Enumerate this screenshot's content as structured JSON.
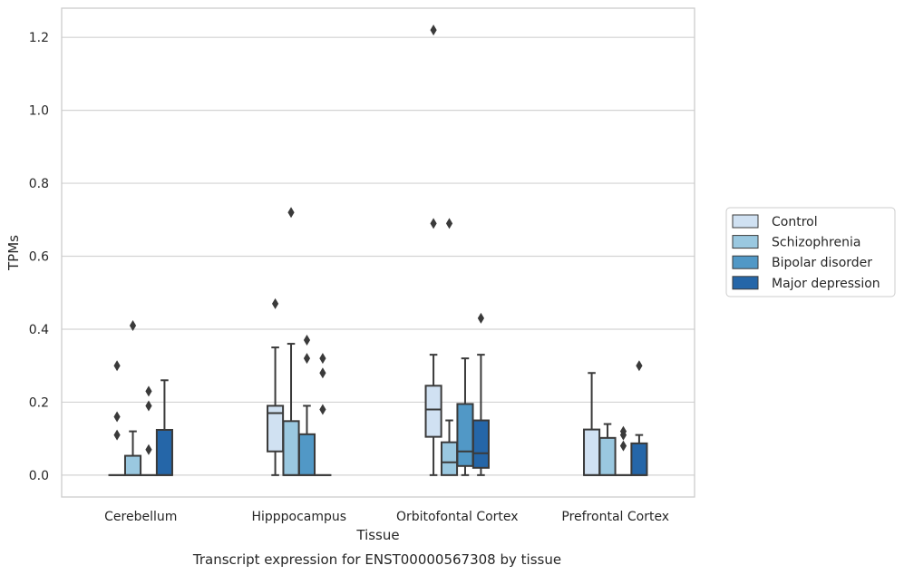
{
  "caption": "Transcript expression for ENST00000567308 by tissue",
  "chart_data": {
    "type": "boxplot",
    "title": "",
    "xlabel": "Tissue",
    "ylabel": "TPMs",
    "ylim": [
      -0.06,
      1.28
    ],
    "yticks": [
      0.0,
      0.2,
      0.4,
      0.6,
      0.8,
      1.0,
      1.2
    ],
    "ytick_labels": [
      "0.0",
      "0.2",
      "0.4",
      "0.6",
      "0.8",
      "1.0",
      "1.2"
    ],
    "grid": "horizontal",
    "legend_position": "right",
    "categories": [
      "Cerebellum",
      "Hipppocampus",
      "Orbitofontal Cortex",
      "Prefrontal Cortex"
    ],
    "series": [
      {
        "name": "Control",
        "color": "#d0e1f2",
        "boxes": [
          {
            "q1": 0.0,
            "median": 0.0,
            "q3": 0.0,
            "whisker_low": 0.0,
            "whisker_high": 0.0,
            "outliers": [
              0.3,
              0.16,
              0.11
            ]
          },
          {
            "q1": 0.065,
            "median": 0.17,
            "q3": 0.19,
            "whisker_low": 0.0,
            "whisker_high": 0.35,
            "outliers": [
              0.47
            ]
          },
          {
            "q1": 0.105,
            "median": 0.18,
            "q3": 0.245,
            "whisker_low": 0.0,
            "whisker_high": 0.33,
            "outliers": [
              1.22,
              0.69
            ]
          },
          {
            "q1": 0.0,
            "median": 0.0,
            "q3": 0.125,
            "whisker_low": 0.0,
            "whisker_high": 0.28,
            "outliers": []
          }
        ]
      },
      {
        "name": "Schizophrenia",
        "color": "#9ac8e0",
        "boxes": [
          {
            "q1": 0.0,
            "median": 0.0,
            "q3": 0.053,
            "whisker_low": 0.0,
            "whisker_high": 0.12,
            "outliers": [
              0.41
            ]
          },
          {
            "q1": 0.0,
            "median": 0.0,
            "q3": 0.148,
            "whisker_low": 0.0,
            "whisker_high": 0.36,
            "outliers": [
              0.72
            ]
          },
          {
            "q1": 0.0,
            "median": 0.035,
            "q3": 0.09,
            "whisker_low": 0.0,
            "whisker_high": 0.15,
            "outliers": [
              0.69
            ]
          },
          {
            "q1": 0.0,
            "median": 0.0,
            "q3": 0.102,
            "whisker_low": 0.0,
            "whisker_high": 0.14,
            "outliers": []
          }
        ]
      },
      {
        "name": "Bipolar disorder",
        "color": "#5198c6",
        "boxes": [
          {
            "q1": 0.0,
            "median": 0.0,
            "q3": 0.0,
            "whisker_low": 0.0,
            "whisker_high": 0.0,
            "outliers": [
              0.23,
              0.19,
              0.07
            ]
          },
          {
            "q1": 0.0,
            "median": 0.0,
            "q3": 0.112,
            "whisker_low": 0.0,
            "whisker_high": 0.19,
            "outliers": [
              0.37,
              0.32
            ]
          },
          {
            "q1": 0.025,
            "median": 0.065,
            "q3": 0.195,
            "whisker_low": 0.0,
            "whisker_high": 0.32,
            "outliers": []
          },
          {
            "q1": 0.0,
            "median": 0.0,
            "q3": 0.0,
            "whisker_low": 0.0,
            "whisker_high": 0.0,
            "outliers": [
              0.12,
              0.11,
              0.08
            ]
          }
        ]
      },
      {
        "name": "Major depression",
        "color": "#2566a8",
        "boxes": [
          {
            "q1": 0.0,
            "median": 0.0,
            "q3": 0.124,
            "whisker_low": 0.0,
            "whisker_high": 0.26,
            "outliers": []
          },
          {
            "q1": 0.0,
            "median": 0.0,
            "q3": 0.0,
            "whisker_low": 0.0,
            "whisker_high": 0.0,
            "outliers": [
              0.32,
              0.28,
              0.18
            ]
          },
          {
            "q1": 0.02,
            "median": 0.06,
            "q3": 0.15,
            "whisker_low": 0.0,
            "whisker_high": 0.33,
            "outliers": [
              0.43
            ]
          },
          {
            "q1": 0.0,
            "median": 0.0,
            "q3": 0.087,
            "whisker_low": 0.0,
            "whisker_high": 0.11,
            "outliers": [
              0.3
            ]
          }
        ]
      }
    ]
  }
}
